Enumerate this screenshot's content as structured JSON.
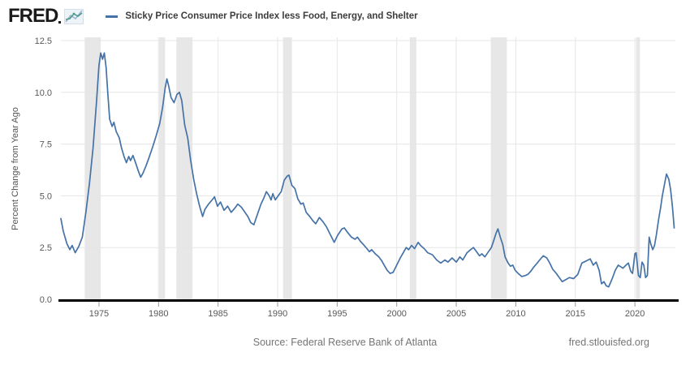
{
  "header": {
    "logo_text": "FRED",
    "legend_label": "Sticky Price Consumer Price Index less Food, Energy, and Shelter"
  },
  "footer": {
    "source": "Source: Federal Reserve Bank of Atlanta",
    "site": "fred.stlouisfed.org"
  },
  "icons": {
    "logo_chart_icon": "mini-line-chart-icon"
  },
  "colors": {
    "line": "#4572a7",
    "recession_band": "#e7e7e7",
    "grid": "#e6e6e6",
    "axis": "#000000",
    "tick_text": "#58585a"
  },
  "chart_data": {
    "type": "line",
    "title": "Sticky Price Consumer Price Index less Food, Energy, and Shelter",
    "xlabel": "",
    "ylabel": "Percent Change from Year Ago",
    "ylim": [
      0,
      12.5
    ],
    "yticks": [
      0.0,
      2.5,
      5.0,
      7.5,
      10.0,
      12.5
    ],
    "xlim": [
      1971.8,
      2023.4
    ],
    "xticks": [
      1975,
      1980,
      1985,
      1990,
      1995,
      2000,
      2005,
      2010,
      2015,
      2020
    ],
    "grid": true,
    "legend_position": "top",
    "recession_bands": [
      [
        1973.8,
        1975.15
      ],
      [
        1980.05,
        1980.55
      ],
      [
        1981.5,
        1982.85
      ],
      [
        1990.45,
        1991.2
      ],
      [
        2001.1,
        2001.65
      ],
      [
        2007.9,
        2009.25
      ],
      [
        2020.1,
        2020.42
      ]
    ],
    "series": [
      {
        "name": "Sticky Price Consumer Price Index less Food, Energy, and Shelter",
        "points": [
          [
            1971.8,
            3.9
          ],
          [
            1972.0,
            3.3
          ],
          [
            1972.3,
            2.7
          ],
          [
            1972.55,
            2.4
          ],
          [
            1972.75,
            2.6
          ],
          [
            1973.0,
            2.25
          ],
          [
            1973.3,
            2.55
          ],
          [
            1973.6,
            3.0
          ],
          [
            1973.9,
            4.2
          ],
          [
            1974.2,
            5.6
          ],
          [
            1974.5,
            7.3
          ],
          [
            1974.8,
            9.6
          ],
          [
            1975.0,
            11.3
          ],
          [
            1975.15,
            11.9
          ],
          [
            1975.3,
            11.6
          ],
          [
            1975.45,
            11.9
          ],
          [
            1975.6,
            11.2
          ],
          [
            1975.75,
            9.9
          ],
          [
            1975.9,
            8.7
          ],
          [
            1976.1,
            8.35
          ],
          [
            1976.25,
            8.55
          ],
          [
            1976.45,
            8.1
          ],
          [
            1976.7,
            7.8
          ],
          [
            1976.9,
            7.3
          ],
          [
            1977.1,
            6.9
          ],
          [
            1977.3,
            6.6
          ],
          [
            1977.5,
            6.9
          ],
          [
            1977.65,
            6.7
          ],
          [
            1977.85,
            6.95
          ],
          [
            1978.1,
            6.55
          ],
          [
            1978.3,
            6.2
          ],
          [
            1978.5,
            5.9
          ],
          [
            1978.7,
            6.1
          ],
          [
            1978.95,
            6.45
          ],
          [
            1979.2,
            6.85
          ],
          [
            1979.5,
            7.35
          ],
          [
            1979.8,
            7.9
          ],
          [
            1980.1,
            8.5
          ],
          [
            1980.35,
            9.3
          ],
          [
            1980.55,
            10.2
          ],
          [
            1980.7,
            10.65
          ],
          [
            1980.85,
            10.3
          ],
          [
            1981.05,
            9.75
          ],
          [
            1981.3,
            9.5
          ],
          [
            1981.55,
            9.9
          ],
          [
            1981.75,
            10.0
          ],
          [
            1981.95,
            9.6
          ],
          [
            1982.2,
            8.4
          ],
          [
            1982.45,
            7.8
          ],
          [
            1982.7,
            6.7
          ],
          [
            1982.95,
            5.8
          ],
          [
            1983.2,
            5.1
          ],
          [
            1983.45,
            4.5
          ],
          [
            1983.7,
            4.0
          ],
          [
            1983.9,
            4.35
          ],
          [
            1984.2,
            4.6
          ],
          [
            1984.5,
            4.8
          ],
          [
            1984.7,
            4.95
          ],
          [
            1984.95,
            4.5
          ],
          [
            1985.2,
            4.7
          ],
          [
            1985.5,
            4.3
          ],
          [
            1985.8,
            4.5
          ],
          [
            1986.1,
            4.2
          ],
          [
            1986.4,
            4.4
          ],
          [
            1986.65,
            4.6
          ],
          [
            1986.95,
            4.45
          ],
          [
            1987.2,
            4.25
          ],
          [
            1987.5,
            4.0
          ],
          [
            1987.75,
            3.7
          ],
          [
            1988.0,
            3.6
          ],
          [
            1988.3,
            4.1
          ],
          [
            1988.6,
            4.6
          ],
          [
            1988.85,
            4.9
          ],
          [
            1989.05,
            5.2
          ],
          [
            1989.3,
            5.0
          ],
          [
            1989.45,
            4.8
          ],
          [
            1989.6,
            5.1
          ],
          [
            1989.8,
            4.8
          ],
          [
            1990.05,
            5.0
          ],
          [
            1990.3,
            5.2
          ],
          [
            1990.55,
            5.75
          ],
          [
            1990.8,
            5.95
          ],
          [
            1990.95,
            6.0
          ],
          [
            1991.2,
            5.5
          ],
          [
            1991.45,
            5.35
          ],
          [
            1991.7,
            4.85
          ],
          [
            1991.95,
            4.6
          ],
          [
            1992.15,
            4.65
          ],
          [
            1992.4,
            4.2
          ],
          [
            1992.7,
            4.0
          ],
          [
            1992.95,
            3.8
          ],
          [
            1993.2,
            3.65
          ],
          [
            1993.5,
            3.95
          ],
          [
            1993.8,
            3.75
          ],
          [
            1994.1,
            3.5
          ],
          [
            1994.4,
            3.15
          ],
          [
            1994.75,
            2.75
          ],
          [
            1995.05,
            3.1
          ],
          [
            1995.4,
            3.4
          ],
          [
            1995.6,
            3.45
          ],
          [
            1995.85,
            3.25
          ],
          [
            1996.2,
            3.0
          ],
          [
            1996.5,
            2.9
          ],
          [
            1996.7,
            3.0
          ],
          [
            1996.95,
            2.8
          ],
          [
            1997.2,
            2.65
          ],
          [
            1997.5,
            2.45
          ],
          [
            1997.7,
            2.3
          ],
          [
            1997.9,
            2.4
          ],
          [
            1998.2,
            2.2
          ],
          [
            1998.5,
            2.05
          ],
          [
            1998.75,
            1.85
          ],
          [
            1999.0,
            1.6
          ],
          [
            1999.2,
            1.4
          ],
          [
            1999.45,
            1.25
          ],
          [
            1999.7,
            1.3
          ],
          [
            2000.0,
            1.65
          ],
          [
            2000.3,
            2.0
          ],
          [
            2000.6,
            2.3
          ],
          [
            2000.8,
            2.5
          ],
          [
            2001.0,
            2.4
          ],
          [
            2001.25,
            2.6
          ],
          [
            2001.5,
            2.45
          ],
          [
            2001.8,
            2.75
          ],
          [
            2002.0,
            2.6
          ],
          [
            2002.3,
            2.45
          ],
          [
            2002.6,
            2.25
          ],
          [
            2003.0,
            2.15
          ],
          [
            2003.35,
            1.9
          ],
          [
            2003.7,
            1.75
          ],
          [
            2004.05,
            1.9
          ],
          [
            2004.3,
            1.8
          ],
          [
            2004.65,
            2.0
          ],
          [
            2005.0,
            1.8
          ],
          [
            2005.3,
            2.05
          ],
          [
            2005.55,
            1.9
          ],
          [
            2005.9,
            2.25
          ],
          [
            2006.2,
            2.4
          ],
          [
            2006.45,
            2.5
          ],
          [
            2006.7,
            2.3
          ],
          [
            2006.95,
            2.1
          ],
          [
            2007.15,
            2.2
          ],
          [
            2007.4,
            2.05
          ],
          [
            2007.7,
            2.3
          ],
          [
            2007.95,
            2.5
          ],
          [
            2008.15,
            2.85
          ],
          [
            2008.35,
            3.2
          ],
          [
            2008.5,
            3.4
          ],
          [
            2008.7,
            3.0
          ],
          [
            2008.9,
            2.65
          ],
          [
            2009.1,
            2.05
          ],
          [
            2009.35,
            1.75
          ],
          [
            2009.55,
            1.6
          ],
          [
            2009.75,
            1.65
          ],
          [
            2009.95,
            1.4
          ],
          [
            2010.2,
            1.25
          ],
          [
            2010.5,
            1.1
          ],
          [
            2010.8,
            1.15
          ],
          [
            2011.0,
            1.2
          ],
          [
            2011.25,
            1.35
          ],
          [
            2011.5,
            1.55
          ],
          [
            2011.8,
            1.75
          ],
          [
            2012.0,
            1.9
          ],
          [
            2012.3,
            2.1
          ],
          [
            2012.6,
            2.0
          ],
          [
            2012.85,
            1.75
          ],
          [
            2013.1,
            1.45
          ],
          [
            2013.4,
            1.25
          ],
          [
            2013.65,
            1.05
          ],
          [
            2013.9,
            0.85
          ],
          [
            2014.2,
            0.95
          ],
          [
            2014.5,
            1.05
          ],
          [
            2014.85,
            1.0
          ],
          [
            2015.2,
            1.2
          ],
          [
            2015.55,
            1.75
          ],
          [
            2015.9,
            1.85
          ],
          [
            2016.25,
            1.95
          ],
          [
            2016.5,
            1.65
          ],
          [
            2016.75,
            1.8
          ],
          [
            2017.0,
            1.4
          ],
          [
            2017.2,
            0.75
          ],
          [
            2017.4,
            0.85
          ],
          [
            2017.6,
            0.65
          ],
          [
            2017.8,
            0.6
          ],
          [
            2018.1,
            1.0
          ],
          [
            2018.35,
            1.4
          ],
          [
            2018.6,
            1.65
          ],
          [
            2019.0,
            1.5
          ],
          [
            2019.25,
            1.65
          ],
          [
            2019.45,
            1.75
          ],
          [
            2019.65,
            1.35
          ],
          [
            2019.8,
            1.25
          ],
          [
            2020.0,
            2.2
          ],
          [
            2020.1,
            2.25
          ],
          [
            2020.3,
            1.15
          ],
          [
            2020.45,
            1.05
          ],
          [
            2020.6,
            1.8
          ],
          [
            2020.75,
            1.65
          ],
          [
            2020.9,
            1.05
          ],
          [
            2021.05,
            1.15
          ],
          [
            2021.2,
            3.0
          ],
          [
            2021.35,
            2.65
          ],
          [
            2021.5,
            2.4
          ],
          [
            2021.65,
            2.6
          ],
          [
            2021.8,
            3.1
          ],
          [
            2022.0,
            3.9
          ],
          [
            2022.15,
            4.4
          ],
          [
            2022.3,
            5.0
          ],
          [
            2022.5,
            5.6
          ],
          [
            2022.65,
            6.05
          ],
          [
            2022.85,
            5.8
          ],
          [
            2023.0,
            5.3
          ],
          [
            2023.15,
            4.5
          ],
          [
            2023.25,
            3.8
          ],
          [
            2023.3,
            3.45
          ]
        ]
      }
    ]
  }
}
